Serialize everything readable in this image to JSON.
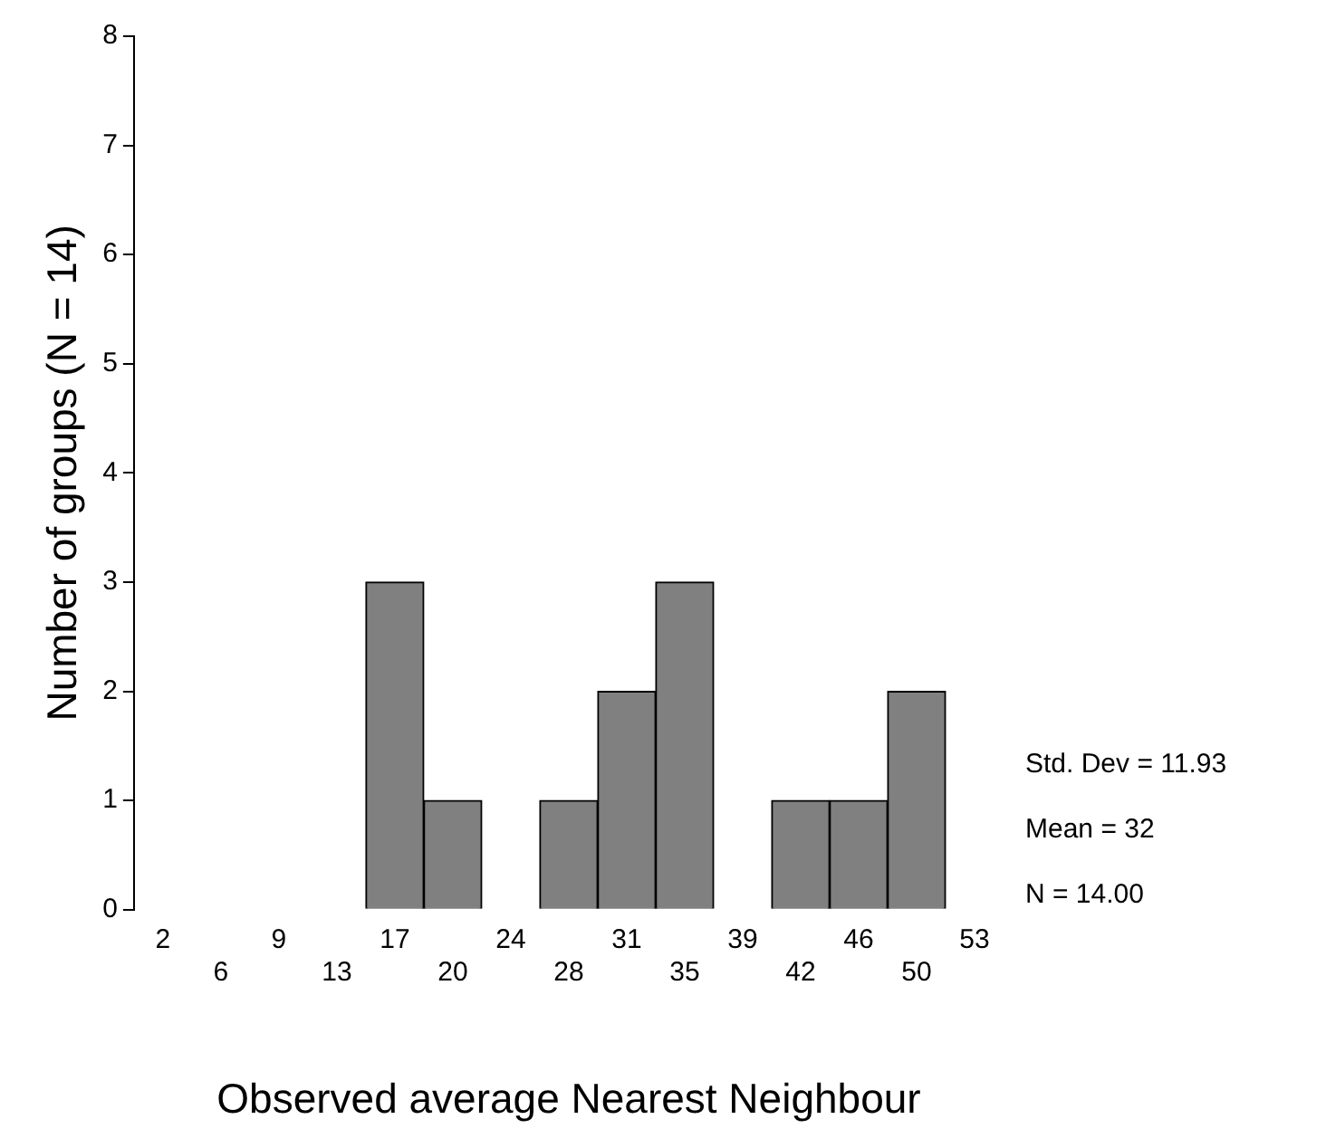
{
  "chart_data": {
    "type": "bar",
    "xlabel": "Observed average Nearest Neighbour",
    "ylabel": "Number of groups (N = 14)",
    "categories": [
      "2",
      "6",
      "9",
      "13",
      "17",
      "20",
      "24",
      "28",
      "31",
      "35",
      "39",
      "42",
      "46",
      "50",
      "53"
    ],
    "values": [
      0,
      0,
      0,
      0,
      3,
      1,
      0,
      1,
      2,
      3,
      0,
      1,
      1,
      2,
      0
    ],
    "color": "#808080",
    "ylim": [
      0,
      8
    ],
    "yticks": [
      0,
      1,
      2,
      3,
      4,
      5,
      6,
      7,
      8
    ],
    "grid": false,
    "legend": false,
    "annotations": [
      "Std. Dev = 11.93",
      "Mean = 32",
      "N = 14.00"
    ]
  }
}
